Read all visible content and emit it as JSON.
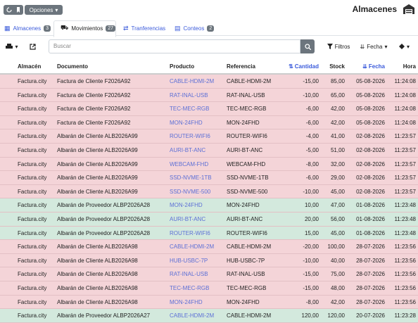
{
  "header": {
    "title": "Almacenes",
    "options_button": "Opciones"
  },
  "tabs": [
    {
      "label": "Almacenes",
      "badge": "3"
    },
    {
      "label": "Movimientos",
      "badge": "27"
    },
    {
      "label": "Tranferencias"
    },
    {
      "label": "Conteos",
      "badge": "2"
    }
  ],
  "toolbar": {
    "search_placeholder": "Buscar",
    "filters_button": "Filtros",
    "sort_button": "Fecha"
  },
  "table": {
    "headers": [
      "Almacén",
      "Documento",
      "Producto",
      "Referencia",
      "Cantidad",
      "Stock",
      "Fecha",
      "Hora"
    ],
    "rows": [
      {
        "color": "#f4d4d8",
        "cells": [
          "Factura.city",
          "Factura de Cliente F2026A92",
          "CABLE-HDMI-2M",
          "CABLE-HDMI-2M",
          "-15,00",
          "85,00",
          "05-08-2026",
          "11:24:08"
        ]
      },
      {
        "color": "#f4d4d8",
        "cells": [
          "Factura.city",
          "Factura de Cliente F2026A92",
          "RAT-INAL-USB",
          "RAT-INAL-USB",
          "-10,00",
          "65,00",
          "05-08-2026",
          "11:24:08"
        ]
      },
      {
        "color": "#f4d4d8",
        "cells": [
          "Factura.city",
          "Factura de Cliente F2026A92",
          "TEC-MEC-RGB",
          "TEC-MEC-RGB",
          "-6,00",
          "42,00",
          "05-08-2026",
          "11:24:08"
        ]
      },
      {
        "color": "#f4d4d8",
        "cells": [
          "Factura.city",
          "Factura de Cliente F2026A92",
          "MON-24FHD",
          "MON-24FHD",
          "-6,00",
          "42,00",
          "05-08-2026",
          "11:24:08"
        ]
      },
      {
        "color": "#f4d4d8",
        "cells": [
          "Factura.city",
          "Albarán de Cliente ALB2026A99",
          "ROUTER-WIFI6",
          "ROUTER-WIFI6",
          "-4,00",
          "41,00",
          "02-08-2026",
          "11:23:57"
        ]
      },
      {
        "color": "#f4d4d8",
        "cells": [
          "Factura.city",
          "Albarán de Cliente ALB2026A99",
          "AURI-BT-ANC",
          "AURI-BT-ANC",
          "-5,00",
          "51,00",
          "02-08-2026",
          "11:23:57"
        ]
      },
      {
        "color": "#f4d4d8",
        "cells": [
          "Factura.city",
          "Albarán de Cliente ALB2026A99",
          "WEBCAM-FHD",
          "WEBCAM-FHD",
          "-8,00",
          "32,00",
          "02-08-2026",
          "11:23:57"
        ]
      },
      {
        "color": "#f4d4d8",
        "cells": [
          "Factura.city",
          "Albarán de Cliente ALB2026A99",
          "SSD-NVME-1TB",
          "SSD-NVME-1TB",
          "-6,00",
          "29,00",
          "02-08-2026",
          "11:23:57"
        ]
      },
      {
        "color": "#f4d4d8",
        "cells": [
          "Factura.city",
          "Albarán de Cliente ALB2026A99",
          "SSD-NVME-500",
          "SSD-NVME-500",
          "-10,00",
          "45,00",
          "02-08-2026",
          "11:23:57"
        ]
      },
      {
        "color": "#d3e9dd",
        "cells": [
          "Factura.city",
          "Albarán de Proveedor ALBP2026A28",
          "MON-24FHD",
          "MON-24FHD",
          "10,00",
          "47,00",
          "01-08-2026",
          "11:23:48"
        ]
      },
      {
        "color": "#d3e9dd",
        "cells": [
          "Factura.city",
          "Albarán de Proveedor ALBP2026A28",
          "AURI-BT-ANC",
          "AURI-BT-ANC",
          "20,00",
          "56,00",
          "01-08-2026",
          "11:23:48"
        ]
      },
      {
        "color": "#d3e9dd",
        "cells": [
          "Factura.city",
          "Albarán de Proveedor ALBP2026A28",
          "ROUTER-WIFI6",
          "ROUTER-WIFI6",
          "15,00",
          "45,00",
          "01-08-2026",
          "11:23:48"
        ]
      },
      {
        "color": "#f4d4d8",
        "cells": [
          "Factura.city",
          "Albarán de Cliente ALB2026A98",
          "CABLE-HDMI-2M",
          "CABLE-HDMI-2M",
          "-20,00",
          "100,00",
          "28-07-2026",
          "11:23:56"
        ]
      },
      {
        "color": "#f4d4d8",
        "cells": [
          "Factura.city",
          "Albarán de Cliente ALB2026A98",
          "HUB-USBC-7P",
          "HUB-USBC-7P",
          "-10,00",
          "40,00",
          "28-07-2026",
          "11:23:56"
        ]
      },
      {
        "color": "#f4d4d8",
        "cells": [
          "Factura.city",
          "Albarán de Cliente ALB2026A98",
          "RAT-INAL-USB",
          "RAT-INAL-USB",
          "-15,00",
          "75,00",
          "28-07-2026",
          "11:23:56"
        ]
      },
      {
        "color": "#f4d4d8",
        "cells": [
          "Factura.city",
          "Albarán de Cliente ALB2026A98",
          "TEC-MEC-RGB",
          "TEC-MEC-RGB",
          "-15,00",
          "48,00",
          "28-07-2026",
          "11:23:56"
        ]
      },
      {
        "color": "#f4d4d8",
        "cells": [
          "Factura.city",
          "Albarán de Cliente ALB2026A98",
          "MON-24FHD",
          "MON-24FHD",
          "-8,00",
          "42,00",
          "28-07-2026",
          "11:23:56"
        ]
      },
      {
        "color": "#d3e9dd",
        "cells": [
          "Factura.city",
          "Albarán de Proveedor ALBP2026A27",
          "CABLE-HDMI-2M",
          "CABLE-HDMI-2M",
          "120,00",
          "120,00",
          "20-07-2026",
          "11:23:28"
        ]
      }
    ]
  }
}
